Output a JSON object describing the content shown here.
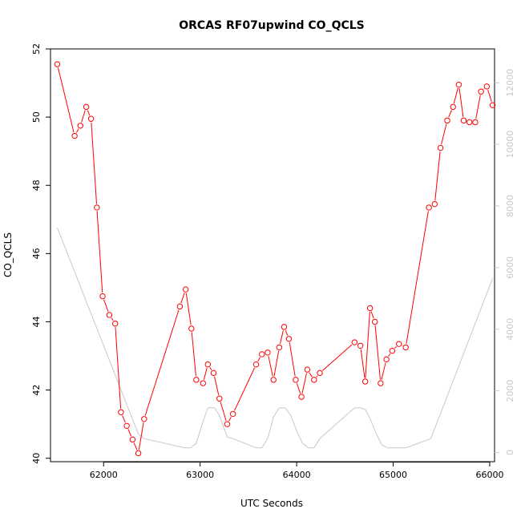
{
  "chart_data": {
    "type": "line",
    "title": "ORCAS RF07upwind CO_QCLS",
    "xlabel": "UTC Seconds",
    "ylabel": "CO_QCLS",
    "xlim": [
      61450,
      66050
    ],
    "ylim": [
      39.9,
      52.0
    ],
    "xticks": [
      62000,
      63000,
      64000,
      65000,
      66000
    ],
    "yticks": [
      40,
      42,
      44,
      46,
      48,
      50,
      52
    ],
    "y2lim": [
      -300,
      13100
    ],
    "y2ticks": [
      0,
      2000,
      4000,
      6000,
      8000,
      10000,
      12000
    ],
    "colors": {
      "primary": "#ff0000",
      "secondary": "#c8c8c8",
      "axis": "#000000"
    },
    "series": [
      {
        "axis": "left",
        "marker": "open-circle",
        "x": [
          61520,
          61700,
          61760,
          61820,
          61870,
          61930,
          61990,
          62060,
          62120,
          62180,
          62240,
          62300,
          62360,
          62420,
          62790,
          62850,
          62910,
          62960,
          63030,
          63080,
          63140,
          63200,
          63280,
          63340,
          63580,
          63640,
          63700,
          63760,
          63820,
          63870,
          63920,
          63990,
          64050,
          64110,
          64180,
          64240,
          64600,
          64660,
          64710,
          64760,
          64810,
          64870,
          64930,
          64990,
          65060,
          65130,
          65370,
          65430,
          65490,
          65560,
          65620,
          65680,
          65730,
          65790,
          65850,
          65910,
          65970,
          66030
        ],
        "y": [
          51.55,
          49.45,
          49.75,
          50.3,
          49.95,
          47.35,
          44.75,
          44.2,
          43.95,
          41.35,
          40.95,
          40.55,
          40.15,
          41.15,
          44.45,
          44.95,
          43.8,
          42.3,
          42.2,
          42.75,
          42.5,
          41.75,
          41.0,
          41.3,
          42.75,
          43.05,
          43.1,
          42.3,
          43.25,
          43.85,
          43.5,
          42.3,
          41.8,
          42.6,
          42.3,
          42.5,
          43.4,
          43.3,
          42.25,
          44.4,
          44.0,
          42.2,
          42.9,
          43.15,
          43.35,
          43.25,
          47.35,
          47.45,
          49.1,
          49.9,
          50.3,
          50.95,
          49.9,
          49.85,
          49.85,
          50.75,
          50.9,
          50.35
        ]
      },
      {
        "axis": "right",
        "marker": "none",
        "x": [
          61520,
          62360,
          62420,
          62840,
          62900,
          62960,
          63030,
          63080,
          63150,
          63200,
          63280,
          63340,
          63580,
          63640,
          63700,
          63760,
          63820,
          63880,
          63940,
          64000,
          64060,
          64120,
          64180,
          64240,
          64600,
          64660,
          64710,
          64760,
          64820,
          64880,
          64940,
          65130,
          65390,
          66030
        ],
        "y": [
          7300,
          600,
          450,
          150,
          150,
          300,
          1000,
          1450,
          1450,
          1200,
          500,
          450,
          150,
          150,
          450,
          1150,
          1450,
          1450,
          1200,
          700,
          300,
          150,
          150,
          450,
          1450,
          1450,
          1400,
          1100,
          650,
          250,
          150,
          150,
          450,
          5650
        ]
      }
    ]
  }
}
